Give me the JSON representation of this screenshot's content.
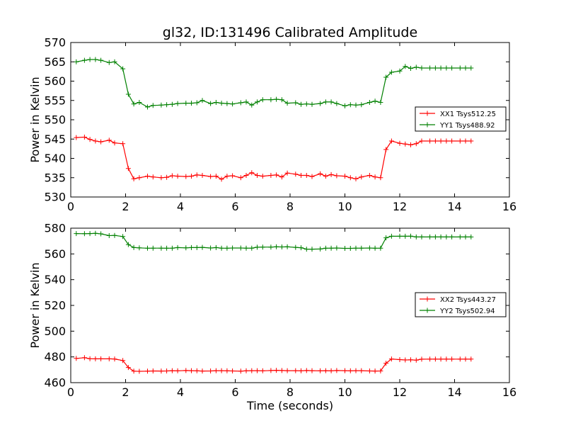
{
  "chart_data": [
    {
      "type": "line",
      "title": "gl32, ID:131496 Calibrated Amplitude",
      "xlabel": "",
      "ylabel": "Power in Kelvin",
      "xlim": [
        0,
        16
      ],
      "ylim": [
        530,
        570
      ],
      "xticks": [
        0,
        2,
        4,
        6,
        8,
        10,
        12,
        14,
        16
      ],
      "yticks": [
        530,
        535,
        540,
        545,
        550,
        555,
        560,
        565,
        570
      ],
      "x": [
        0.2,
        0.5,
        0.7,
        0.9,
        1.1,
        1.4,
        1.6,
        1.9,
        2.1,
        2.3,
        2.5,
        2.8,
        3.0,
        3.3,
        3.5,
        3.7,
        3.9,
        4.2,
        4.4,
        4.6,
        4.8,
        5.1,
        5.3,
        5.5,
        5.7,
        5.9,
        6.2,
        6.4,
        6.6,
        6.8,
        7.0,
        7.3,
        7.5,
        7.7,
        7.9,
        8.2,
        8.4,
        8.6,
        8.8,
        9.1,
        9.3,
        9.5,
        9.7,
        10.0,
        10.2,
        10.4,
        10.6,
        10.9,
        11.1,
        11.3,
        11.5,
        11.7,
        12.0,
        12.2,
        12.4,
        12.6,
        12.8,
        13.1,
        13.3,
        13.5,
        13.7,
        13.9,
        14.2,
        14.4,
        14.6
      ],
      "legend_position": "center-right",
      "series": [
        {
          "name": "XX1 Tsys512.25",
          "color": "#ff0000",
          "values": [
            545.4,
            545.5,
            544.9,
            544.5,
            544.3,
            544.7,
            544.0,
            543.8,
            537.4,
            534.7,
            535.0,
            535.4,
            535.2,
            535.0,
            535.1,
            535.5,
            535.4,
            535.3,
            535.4,
            535.7,
            535.6,
            535.3,
            535.4,
            534.6,
            535.4,
            535.5,
            535.0,
            535.6,
            536.3,
            535.6,
            535.4,
            535.6,
            535.7,
            535.2,
            536.2,
            535.9,
            535.6,
            535.6,
            535.3,
            536.0,
            535.4,
            535.8,
            535.5,
            535.4,
            535.0,
            534.7,
            535.2,
            535.6,
            535.2,
            535.0,
            542.3,
            544.5,
            543.9,
            543.7,
            543.5,
            543.8,
            544.5,
            544.5,
            544.5,
            544.5,
            544.5,
            544.5,
            544.5,
            544.5,
            544.5
          ]
        },
        {
          "name": "YY1 Tsys488.92",
          "color": "#008000",
          "values": [
            565.0,
            565.4,
            565.6,
            565.6,
            565.4,
            564.8,
            565.0,
            563.2,
            556.6,
            554.1,
            554.5,
            553.3,
            553.7,
            553.8,
            553.9,
            554.0,
            554.2,
            554.3,
            554.3,
            554.4,
            555.0,
            554.2,
            554.5,
            554.3,
            554.2,
            554.1,
            554.4,
            554.6,
            553.8,
            554.6,
            555.2,
            555.2,
            555.3,
            555.2,
            554.3,
            554.4,
            554.0,
            554.1,
            554.0,
            554.2,
            554.6,
            554.6,
            554.2,
            553.6,
            553.9,
            553.8,
            553.9,
            554.5,
            554.8,
            554.5,
            561.0,
            562.3,
            562.6,
            563.8,
            563.3,
            563.6,
            563.4,
            563.4,
            563.4,
            563.4,
            563.4,
            563.4,
            563.4,
            563.4,
            563.4
          ]
        }
      ]
    },
    {
      "type": "line",
      "title": "",
      "xlabel": "Time (seconds)",
      "ylabel": "Power in Kelvin",
      "xlim": [
        0,
        16
      ],
      "ylim": [
        460,
        580
      ],
      "xticks": [
        0,
        2,
        4,
        6,
        8,
        10,
        12,
        14,
        16
      ],
      "yticks": [
        460,
        480,
        500,
        520,
        540,
        560,
        580
      ],
      "x": [
        0.2,
        0.5,
        0.7,
        0.9,
        1.1,
        1.4,
        1.6,
        1.9,
        2.1,
        2.3,
        2.5,
        2.8,
        3.0,
        3.3,
        3.5,
        3.7,
        3.9,
        4.2,
        4.4,
        4.6,
        4.8,
        5.1,
        5.3,
        5.5,
        5.7,
        5.9,
        6.2,
        6.4,
        6.6,
        6.8,
        7.0,
        7.3,
        7.5,
        7.7,
        7.9,
        8.2,
        8.4,
        8.6,
        8.8,
        9.1,
        9.3,
        9.5,
        9.7,
        10.0,
        10.2,
        10.4,
        10.6,
        10.9,
        11.1,
        11.3,
        11.5,
        11.7,
        12.0,
        12.2,
        12.4,
        12.6,
        12.8,
        13.1,
        13.3,
        13.5,
        13.7,
        13.9,
        14.2,
        14.4,
        14.6
      ],
      "legend_position": "center-right",
      "series": [
        {
          "name": "XX2 Tsys443.27",
          "color": "#ff0000",
          "values": [
            478.8,
            479.4,
            478.6,
            478.5,
            478.5,
            478.5,
            478.4,
            477.2,
            471.8,
            468.9,
            468.8,
            468.9,
            469.1,
            469.0,
            469.1,
            469.3,
            469.2,
            469.4,
            469.3,
            469.2,
            469.0,
            469.1,
            469.3,
            469.3,
            469.2,
            469.1,
            468.9,
            469.2,
            469.3,
            469.3,
            469.2,
            469.4,
            469.6,
            469.4,
            469.3,
            469.3,
            469.2,
            469.4,
            469.3,
            469.2,
            469.3,
            469.2,
            469.4,
            469.3,
            469.2,
            469.3,
            469.3,
            469.1,
            469.0,
            469.1,
            475.1,
            478.4,
            477.9,
            477.6,
            477.7,
            477.5,
            478.2,
            478.3,
            478.3,
            478.3,
            478.3,
            478.3,
            478.3,
            478.3,
            478.3
          ]
        },
        {
          "name": "YY2 Tsys502.94",
          "color": "#008000",
          "values": [
            575.8,
            575.7,
            575.8,
            576.0,
            575.6,
            574.2,
            574.4,
            573.5,
            567.3,
            565.0,
            564.7,
            564.4,
            564.5,
            564.5,
            564.4,
            564.5,
            564.9,
            564.7,
            564.9,
            564.9,
            565.1,
            564.6,
            564.9,
            564.5,
            564.4,
            564.6,
            564.6,
            564.5,
            564.5,
            565.2,
            565.3,
            565.3,
            565.5,
            565.4,
            565.5,
            565.1,
            564.8,
            563.7,
            563.7,
            563.8,
            564.4,
            564.5,
            564.6,
            564.3,
            564.3,
            564.5,
            564.5,
            564.6,
            564.4,
            564.5,
            572.5,
            573.7,
            573.7,
            573.7,
            573.8,
            573.2,
            573.2,
            573.2,
            573.2,
            573.2,
            573.2,
            573.2,
            573.2,
            573.2,
            573.2
          ]
        }
      ]
    }
  ]
}
